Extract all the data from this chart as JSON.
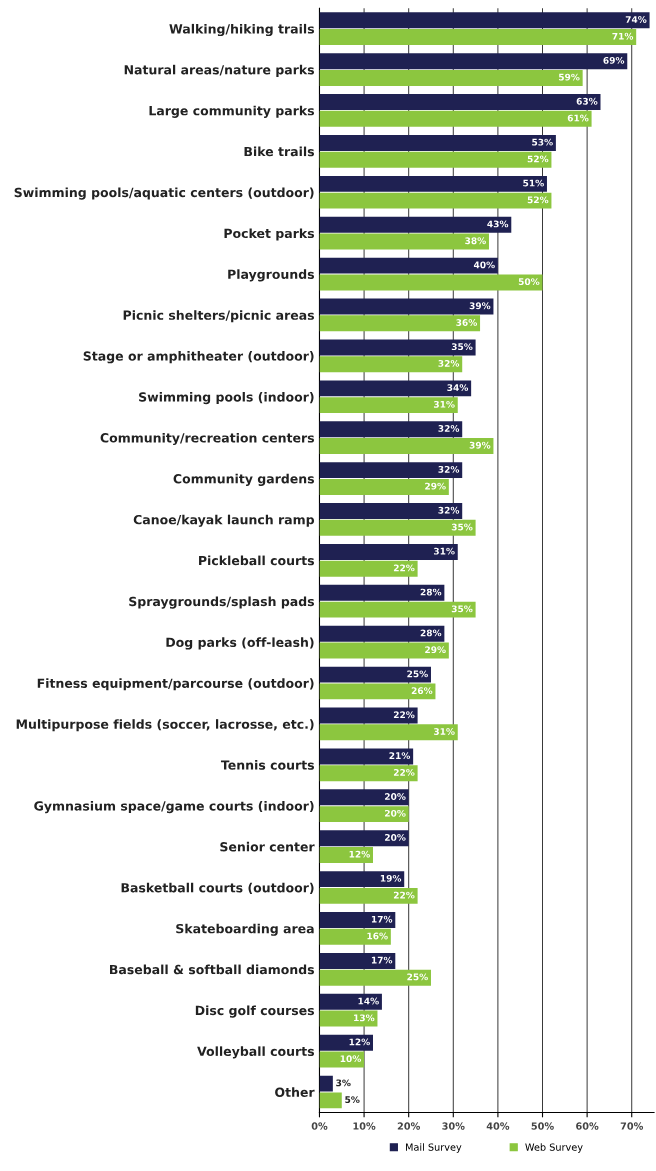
{
  "chart_data": {
    "type": "bar",
    "orientation": "horizontal",
    "categories": [
      "Walking/hiking trails",
      "Natural areas/nature parks",
      "Large community parks",
      "Bike trails",
      "Swimming pools/aquatic centers (outdoor)",
      "Pocket parks",
      "Playgrounds",
      "Picnic shelters/picnic areas",
      "Stage or amphitheater (outdoor)",
      "Swimming pools (indoor)",
      "Community/recreation centers",
      "Community gardens",
      "Canoe/kayak launch ramp",
      "Pickleball courts",
      "Spraygrounds/splash pads",
      "Dog parks (off-leash)",
      "Fitness equipment/parcourse (outdoor)",
      "Multipurpose fields (soccer, lacrosse, etc.)",
      "Tennis courts",
      "Gymnasium space/game courts (indoor)",
      "Senior center",
      "Basketball courts (outdoor)",
      "Skateboarding area",
      "Baseball & softball diamonds",
      "Disc golf courses",
      "Volleyball courts",
      "Other"
    ],
    "series": [
      {
        "name": "Mail Survey",
        "color": "#1f2152",
        "values": [
          74,
          69,
          63,
          53,
          51,
          43,
          40,
          39,
          35,
          34,
          32,
          32,
          32,
          31,
          28,
          28,
          25,
          22,
          21,
          20,
          20,
          19,
          17,
          17,
          14,
          12,
          3
        ],
        "value_labels": [
          "74%",
          "69%",
          "63%",
          "53%",
          "51%",
          "43%",
          "40%",
          "39%",
          "35%",
          "34%",
          "32%",
          "32%",
          "32%",
          "31%",
          "28%",
          "28%",
          "25%",
          "22%",
          "21%",
          "20%",
          "20%",
          "19%",
          "17%",
          "17%",
          "14%",
          "12%",
          "3%"
        ]
      },
      {
        "name": "Web Survey",
        "color": "#8cc63f",
        "values": [
          71,
          59,
          61,
          52,
          52,
          38,
          50,
          36,
          32,
          31,
          39,
          29,
          35,
          22,
          35,
          29,
          26,
          31,
          22,
          20,
          12,
          22,
          16,
          25,
          13,
          10,
          5
        ],
        "value_labels": [
          "71%",
          "59%",
          "61%",
          "52%",
          "52%",
          "38%",
          "50%",
          "36%",
          "32%",
          "31%",
          "39%",
          "29%",
          "35%",
          "22%",
          "35%",
          "29%",
          "26%",
          "31%",
          "22%",
          "20%",
          "12%",
          "22%",
          "16%",
          "25%",
          "13%",
          "10%",
          "5%"
        ]
      }
    ],
    "xlim": [
      0,
      75
    ],
    "xticks": [
      {
        "value": 0,
        "label": "0%"
      },
      {
        "value": 10,
        "label": "10%"
      },
      {
        "value": 20,
        "label": "20%"
      },
      {
        "value": 30,
        "label": "30%"
      },
      {
        "value": 40,
        "label": "40%"
      },
      {
        "value": 50,
        "label": "50%"
      },
      {
        "value": 60,
        "label": "60%"
      },
      {
        "value": 70,
        "label": "70%"
      }
    ],
    "grid": "x",
    "legend": "bottom"
  }
}
